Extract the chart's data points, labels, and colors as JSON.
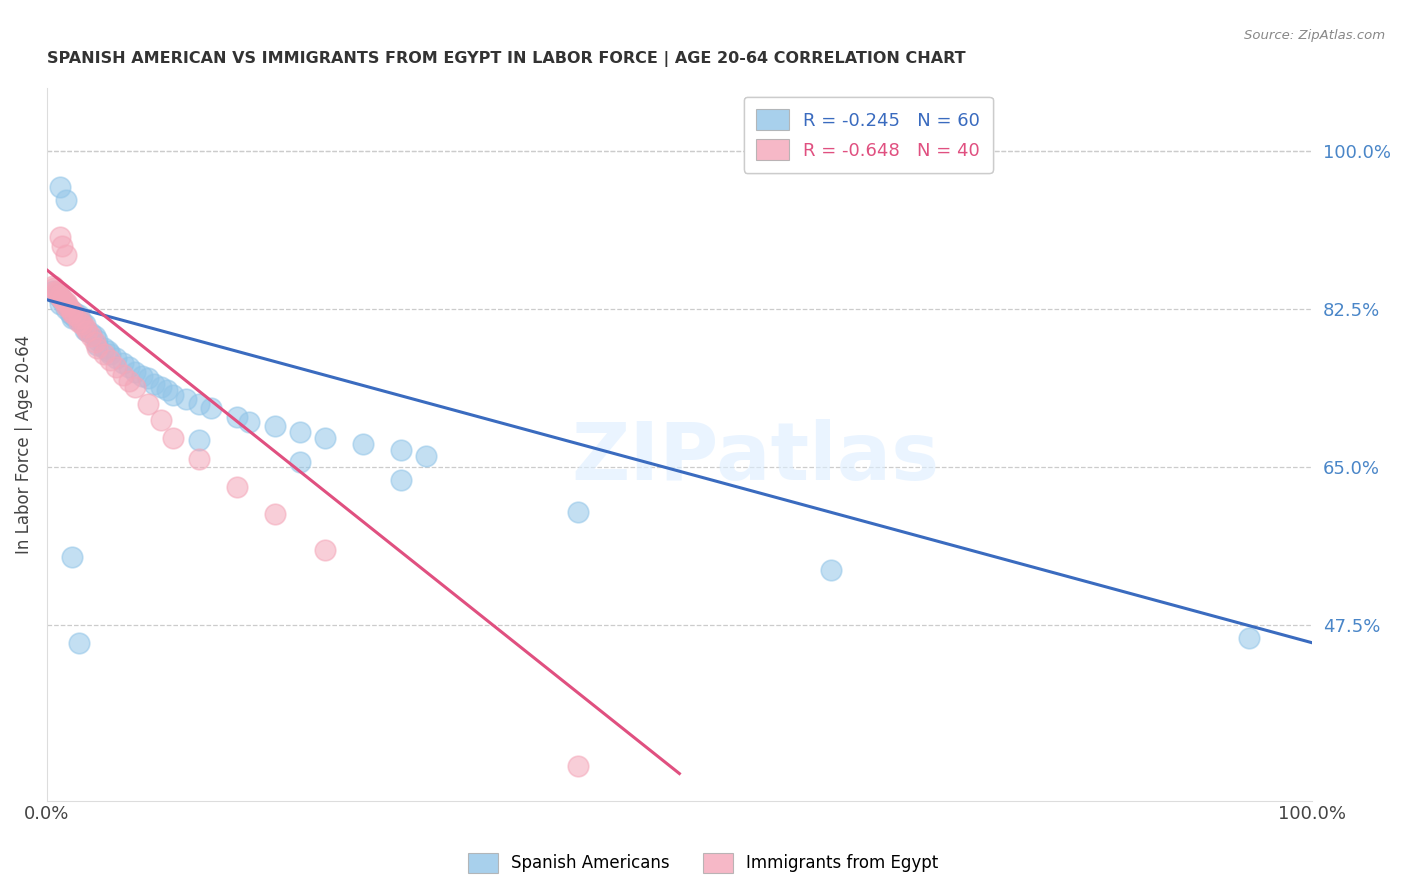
{
  "title": "SPANISH AMERICAN VS IMMIGRANTS FROM EGYPT IN LABOR FORCE | AGE 20-64 CORRELATION CHART",
  "source": "Source: ZipAtlas.com",
  "ylabel": "In Labor Force | Age 20-64",
  "xlim": [
    0.0,
    1.0
  ],
  "ylim": [
    0.28,
    1.07
  ],
  "yticks": [
    0.475,
    0.65,
    0.825,
    1.0
  ],
  "ytick_labels": [
    "47.5%",
    "65.0%",
    "82.5%",
    "100.0%"
  ],
  "blue_R": -0.245,
  "blue_N": 60,
  "pink_R": -0.648,
  "pink_N": 40,
  "blue_color": "#92c5e8",
  "pink_color": "#f4a7b9",
  "blue_line_color": "#3a6bbf",
  "pink_line_color": "#e05080",
  "blue_label": "Spanish Americans",
  "pink_label": "Immigrants from Egypt",
  "watermark_text": "ZIPatlas",
  "blue_scatter_x": [
    0.005,
    0.008,
    0.01,
    0.01,
    0.012,
    0.013,
    0.015,
    0.015,
    0.016,
    0.018,
    0.018,
    0.02,
    0.02,
    0.02,
    0.022,
    0.022,
    0.025,
    0.025,
    0.028,
    0.03,
    0.03,
    0.032,
    0.035,
    0.038,
    0.04,
    0.04,
    0.045,
    0.048,
    0.05,
    0.055,
    0.06,
    0.065,
    0.07,
    0.075,
    0.08,
    0.085,
    0.09,
    0.095,
    0.1,
    0.11,
    0.12,
    0.13,
    0.15,
    0.16,
    0.18,
    0.2,
    0.22,
    0.25,
    0.28,
    0.3,
    0.12,
    0.2,
    0.28,
    0.42,
    0.62,
    0.95,
    0.01,
    0.015,
    0.02,
    0.025
  ],
  "blue_scatter_y": [
    0.845,
    0.84,
    0.838,
    0.83,
    0.835,
    0.832,
    0.83,
    0.825,
    0.828,
    0.825,
    0.82,
    0.822,
    0.818,
    0.815,
    0.82,
    0.815,
    0.818,
    0.812,
    0.81,
    0.808,
    0.802,
    0.8,
    0.798,
    0.795,
    0.79,
    0.785,
    0.782,
    0.778,
    0.775,
    0.77,
    0.765,
    0.76,
    0.755,
    0.75,
    0.748,
    0.742,
    0.738,
    0.735,
    0.73,
    0.725,
    0.72,
    0.715,
    0.705,
    0.7,
    0.695,
    0.688,
    0.682,
    0.675,
    0.668,
    0.662,
    0.68,
    0.655,
    0.635,
    0.6,
    0.535,
    0.46,
    0.96,
    0.945,
    0.55,
    0.455
  ],
  "pink_scatter_x": [
    0.005,
    0.006,
    0.007,
    0.008,
    0.01,
    0.01,
    0.012,
    0.013,
    0.015,
    0.015,
    0.016,
    0.018,
    0.02,
    0.02,
    0.022,
    0.025,
    0.025,
    0.028,
    0.03,
    0.032,
    0.035,
    0.038,
    0.04,
    0.045,
    0.05,
    0.055,
    0.06,
    0.065,
    0.07,
    0.08,
    0.09,
    0.1,
    0.12,
    0.15,
    0.18,
    0.22,
    0.01,
    0.012,
    0.015,
    0.42
  ],
  "pink_scatter_y": [
    0.85,
    0.848,
    0.845,
    0.842,
    0.84,
    0.838,
    0.836,
    0.835,
    0.832,
    0.828,
    0.83,
    0.825,
    0.822,
    0.82,
    0.818,
    0.815,
    0.81,
    0.808,
    0.805,
    0.8,
    0.795,
    0.788,
    0.782,
    0.775,
    0.768,
    0.76,
    0.752,
    0.745,
    0.738,
    0.72,
    0.702,
    0.682,
    0.658,
    0.628,
    0.598,
    0.558,
    0.905,
    0.895,
    0.885,
    0.318
  ],
  "blue_trendline_x": [
    0.0,
    1.0
  ],
  "blue_trendline_y": [
    0.835,
    0.455
  ],
  "pink_trendline_x": [
    0.0,
    0.5
  ],
  "pink_trendline_y": [
    0.868,
    0.31
  ]
}
